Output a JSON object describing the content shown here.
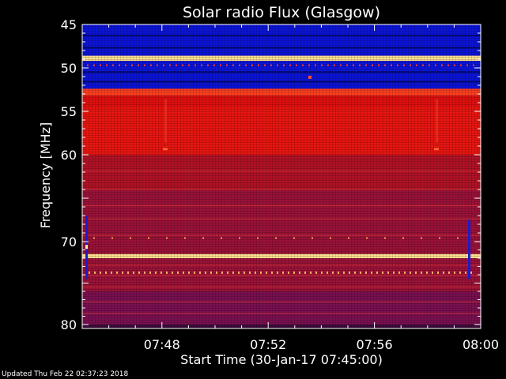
{
  "footer": {
    "updated": "Updated Thu Feb 22 02:37:23 2018"
  },
  "chart_data": {
    "type": "heatmap",
    "title": "Solar radio Flux (Glasgow)",
    "xlabel": "Start Time (30-Jan-17 07:45:00)",
    "ylabel": "Frequency [MHz]",
    "x_tick_labels": [
      "07:48",
      "07:52",
      "07:56",
      "08:00"
    ],
    "x_tick_minutes": [
      3,
      7,
      11,
      15
    ],
    "xlim_minutes": [
      0,
      15
    ],
    "y_tick_labels": [
      "45",
      "50",
      "55",
      "60",
      "70",
      "80"
    ],
    "y_tick_values": [
      45,
      50,
      55,
      60,
      70,
      80
    ],
    "ylim": [
      45,
      80
    ],
    "y_inverted": true,
    "colormap": "blue-purple-red-orange-yellow",
    "colors": {
      "low": "#0a10d8",
      "mid": "#c01018",
      "high": "#ffd060"
    },
    "bands": [
      {
        "from": 45,
        "to": 48.6,
        "level": "low"
      },
      {
        "from": 48.6,
        "to": 49.2,
        "level": "peak"
      },
      {
        "from": 49.2,
        "to": 52.4,
        "level": "low"
      },
      {
        "from": 52.4,
        "to": 53.2,
        "level": "high"
      },
      {
        "from": 53.2,
        "to": 54.5,
        "level": "mid-high"
      },
      {
        "from": 54.5,
        "to": 60,
        "level": "mid-high"
      },
      {
        "from": 60,
        "to": 64,
        "level": "mid"
      },
      {
        "from": 64,
        "to": 71.5,
        "level": "mid-low"
      },
      {
        "from": 71.5,
        "to": 72.0,
        "level": "peak"
      },
      {
        "from": 72.0,
        "to": 76,
        "level": "mid-low"
      },
      {
        "from": 76,
        "to": 80,
        "level": "low-mid"
      }
    ]
  }
}
